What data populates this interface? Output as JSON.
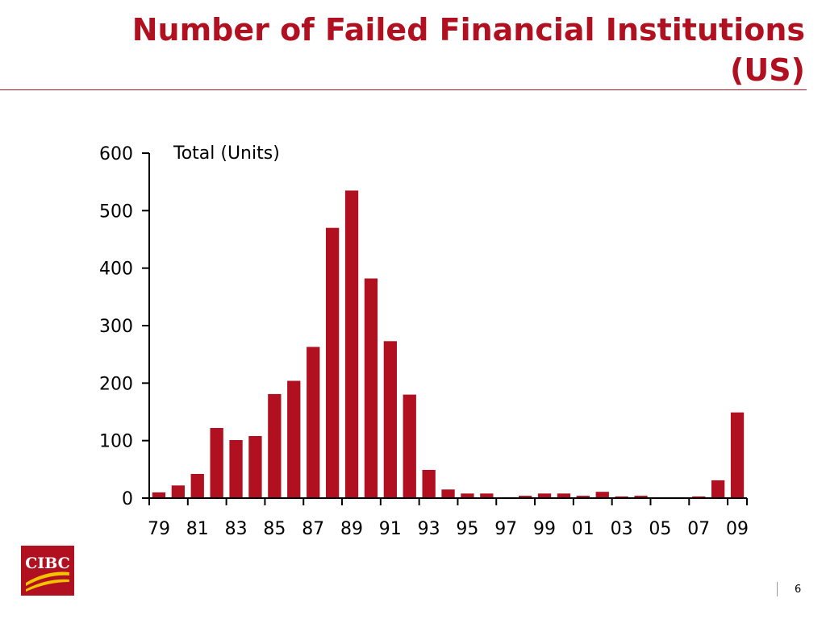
{
  "slide": {
    "title_line1": "Number of Failed Financial Institutions",
    "title_line2": "(US)",
    "page_number": "6",
    "logo_text": "CIBC"
  },
  "colors": {
    "brand_red": "#b0101f",
    "bar": "#b0101f",
    "logo_gold": "#f2c300"
  },
  "chart_data": {
    "type": "bar",
    "unit_label": "Total (Units)",
    "categories": [
      "79",
      "80",
      "81",
      "82",
      "83",
      "84",
      "85",
      "86",
      "87",
      "88",
      "89",
      "90",
      "91",
      "92",
      "93",
      "94",
      "95",
      "96",
      "97",
      "98",
      "99",
      "00",
      "01",
      "02",
      "03",
      "04",
      "05",
      "06",
      "07",
      "08",
      "09"
    ],
    "tick_labels": [
      "79",
      "81",
      "83",
      "85",
      "87",
      "89",
      "91",
      "93",
      "95",
      "97",
      "99",
      "01",
      "03",
      "05",
      "07",
      "09"
    ],
    "values": [
      10,
      22,
      42,
      122,
      101,
      108,
      181,
      204,
      263,
      470,
      535,
      382,
      273,
      180,
      49,
      15,
      8,
      8,
      0,
      4,
      8,
      8,
      4,
      11,
      3,
      4,
      0,
      0,
      3,
      31,
      149
    ],
    "ylim": [
      0,
      600
    ],
    "yticks": [
      0,
      100,
      200,
      300,
      400,
      500,
      600
    ],
    "grid": false,
    "legend": "none"
  }
}
